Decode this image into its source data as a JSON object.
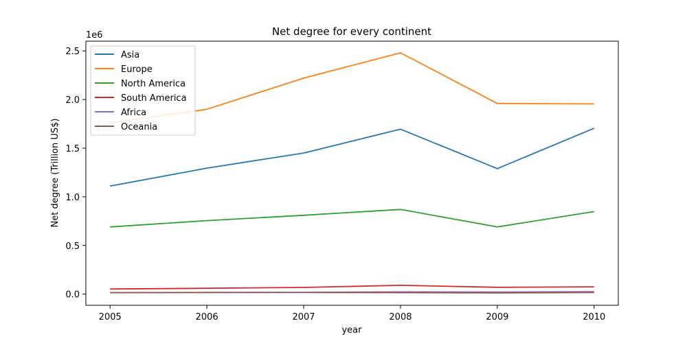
{
  "chart_data": {
    "type": "line",
    "title": "Net degree for every continent",
    "xlabel": "year",
    "ylabel": "Net degree (Trillion US$)",
    "y_offset_label": "1e6",
    "x": [
      2005,
      2006,
      2007,
      2008,
      2009,
      2010
    ],
    "x_tick_labels": [
      "2005",
      "2006",
      "2007",
      "2008",
      "2009",
      "2010"
    ],
    "y_ticks": [
      0,
      500000,
      1000000,
      1500000,
      2000000,
      2500000
    ],
    "y_tick_labels": [
      "0.0",
      "0.5",
      "1.0",
      "1.5",
      "2.0",
      "2.5"
    ],
    "xlim": [
      2004.75,
      2010.25
    ],
    "ylim": [
      -115000,
      2600000
    ],
    "grid": false,
    "legend_position": "top-left",
    "series": [
      {
        "name": "Asia",
        "color": "#1f77b4",
        "values": [
          1110000,
          1295000,
          1450000,
          1695000,
          1290000,
          1705000
        ]
      },
      {
        "name": "Europe",
        "color": "#ff7f0e",
        "values": [
          1760000,
          1900000,
          2220000,
          2480000,
          1960000,
          1955000
        ]
      },
      {
        "name": "North America",
        "color": "#2ca02c",
        "values": [
          690000,
          755000,
          810000,
          870000,
          690000,
          848000
        ]
      },
      {
        "name": "South America",
        "color": "#d62728",
        "values": [
          52000,
          60000,
          68000,
          90000,
          70000,
          75000
        ]
      },
      {
        "name": "Africa",
        "color": "#9467bd",
        "values": [
          15000,
          17000,
          18000,
          23000,
          21000,
          25000
        ]
      },
      {
        "name": "Oceania",
        "color": "#8c564b",
        "values": [
          15000,
          16000,
          16000,
          15000,
          12000,
          16000
        ]
      }
    ]
  }
}
